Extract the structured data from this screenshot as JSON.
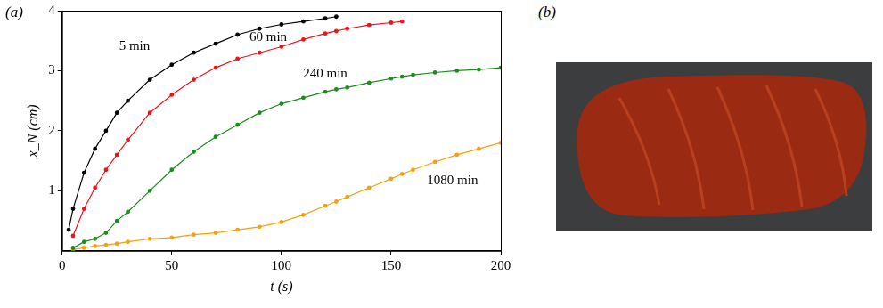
{
  "chart_data": {
    "type": "line",
    "panel": "(a)",
    "x_label": "t (s)",
    "y_label": "x_N (cm)",
    "x": [
      3,
      5,
      10,
      15,
      20,
      25,
      30,
      40,
      50,
      60,
      70,
      80,
      90,
      100,
      110,
      120,
      125,
      130,
      140,
      150,
      155,
      160,
      170,
      180,
      190,
      200
    ],
    "series": [
      {
        "name": "5 min",
        "color": "#000000",
        "values": [
          0.35,
          0.7,
          1.3,
          1.7,
          2.0,
          2.3,
          2.5,
          2.85,
          3.1,
          3.3,
          3.45,
          3.6,
          3.7,
          3.77,
          3.82,
          3.87,
          3.9,
          null,
          null,
          null,
          null,
          null,
          null,
          null,
          null,
          null
        ]
      },
      {
        "name": "60 min",
        "color": "#e8161b",
        "values": [
          null,
          0.25,
          0.7,
          1.05,
          1.35,
          1.6,
          1.85,
          2.3,
          2.6,
          2.85,
          3.05,
          3.2,
          3.3,
          3.4,
          3.52,
          3.62,
          3.66,
          3.7,
          3.76,
          3.8,
          3.82,
          null,
          null,
          null,
          null,
          null
        ]
      },
      {
        "name": "240 min",
        "color": "#1a8c1a",
        "values": [
          null,
          0.05,
          0.15,
          0.2,
          0.3,
          0.5,
          0.65,
          1.0,
          1.35,
          1.65,
          1.9,
          2.1,
          2.3,
          2.45,
          2.55,
          2.65,
          2.69,
          2.72,
          2.8,
          2.87,
          2.9,
          2.93,
          2.97,
          3.0,
          3.02,
          3.05
        ]
      },
      {
        "name": "1080 min",
        "color": "#f5a10f",
        "values": [
          null,
          0.02,
          0.05,
          0.08,
          0.1,
          0.12,
          0.15,
          0.2,
          0.22,
          0.27,
          0.3,
          0.35,
          0.4,
          0.48,
          0.6,
          0.75,
          0.82,
          0.9,
          1.05,
          1.2,
          1.28,
          1.35,
          1.48,
          1.6,
          1.7,
          1.8
        ]
      }
    ],
    "annotations": [
      {
        "text": "5 min",
        "x": 33,
        "y": 3.4
      },
      {
        "text": "60 min",
        "x": 94,
        "y": 3.56
      },
      {
        "text": "240 min",
        "x": 120,
        "y": 2.95
      },
      {
        "text": "1080 min",
        "x": 178,
        "y": 1.16
      }
    ],
    "xlim": [
      0,
      200
    ],
    "xticks": [
      0,
      50,
      100,
      150,
      200
    ],
    "ylim": [
      0,
      4
    ],
    "yticks": [
      1,
      2,
      3,
      4
    ],
    "grid": false,
    "marker": "circle",
    "line_style": "solid"
  },
  "image_panel": {
    "panel": "(b)"
  }
}
